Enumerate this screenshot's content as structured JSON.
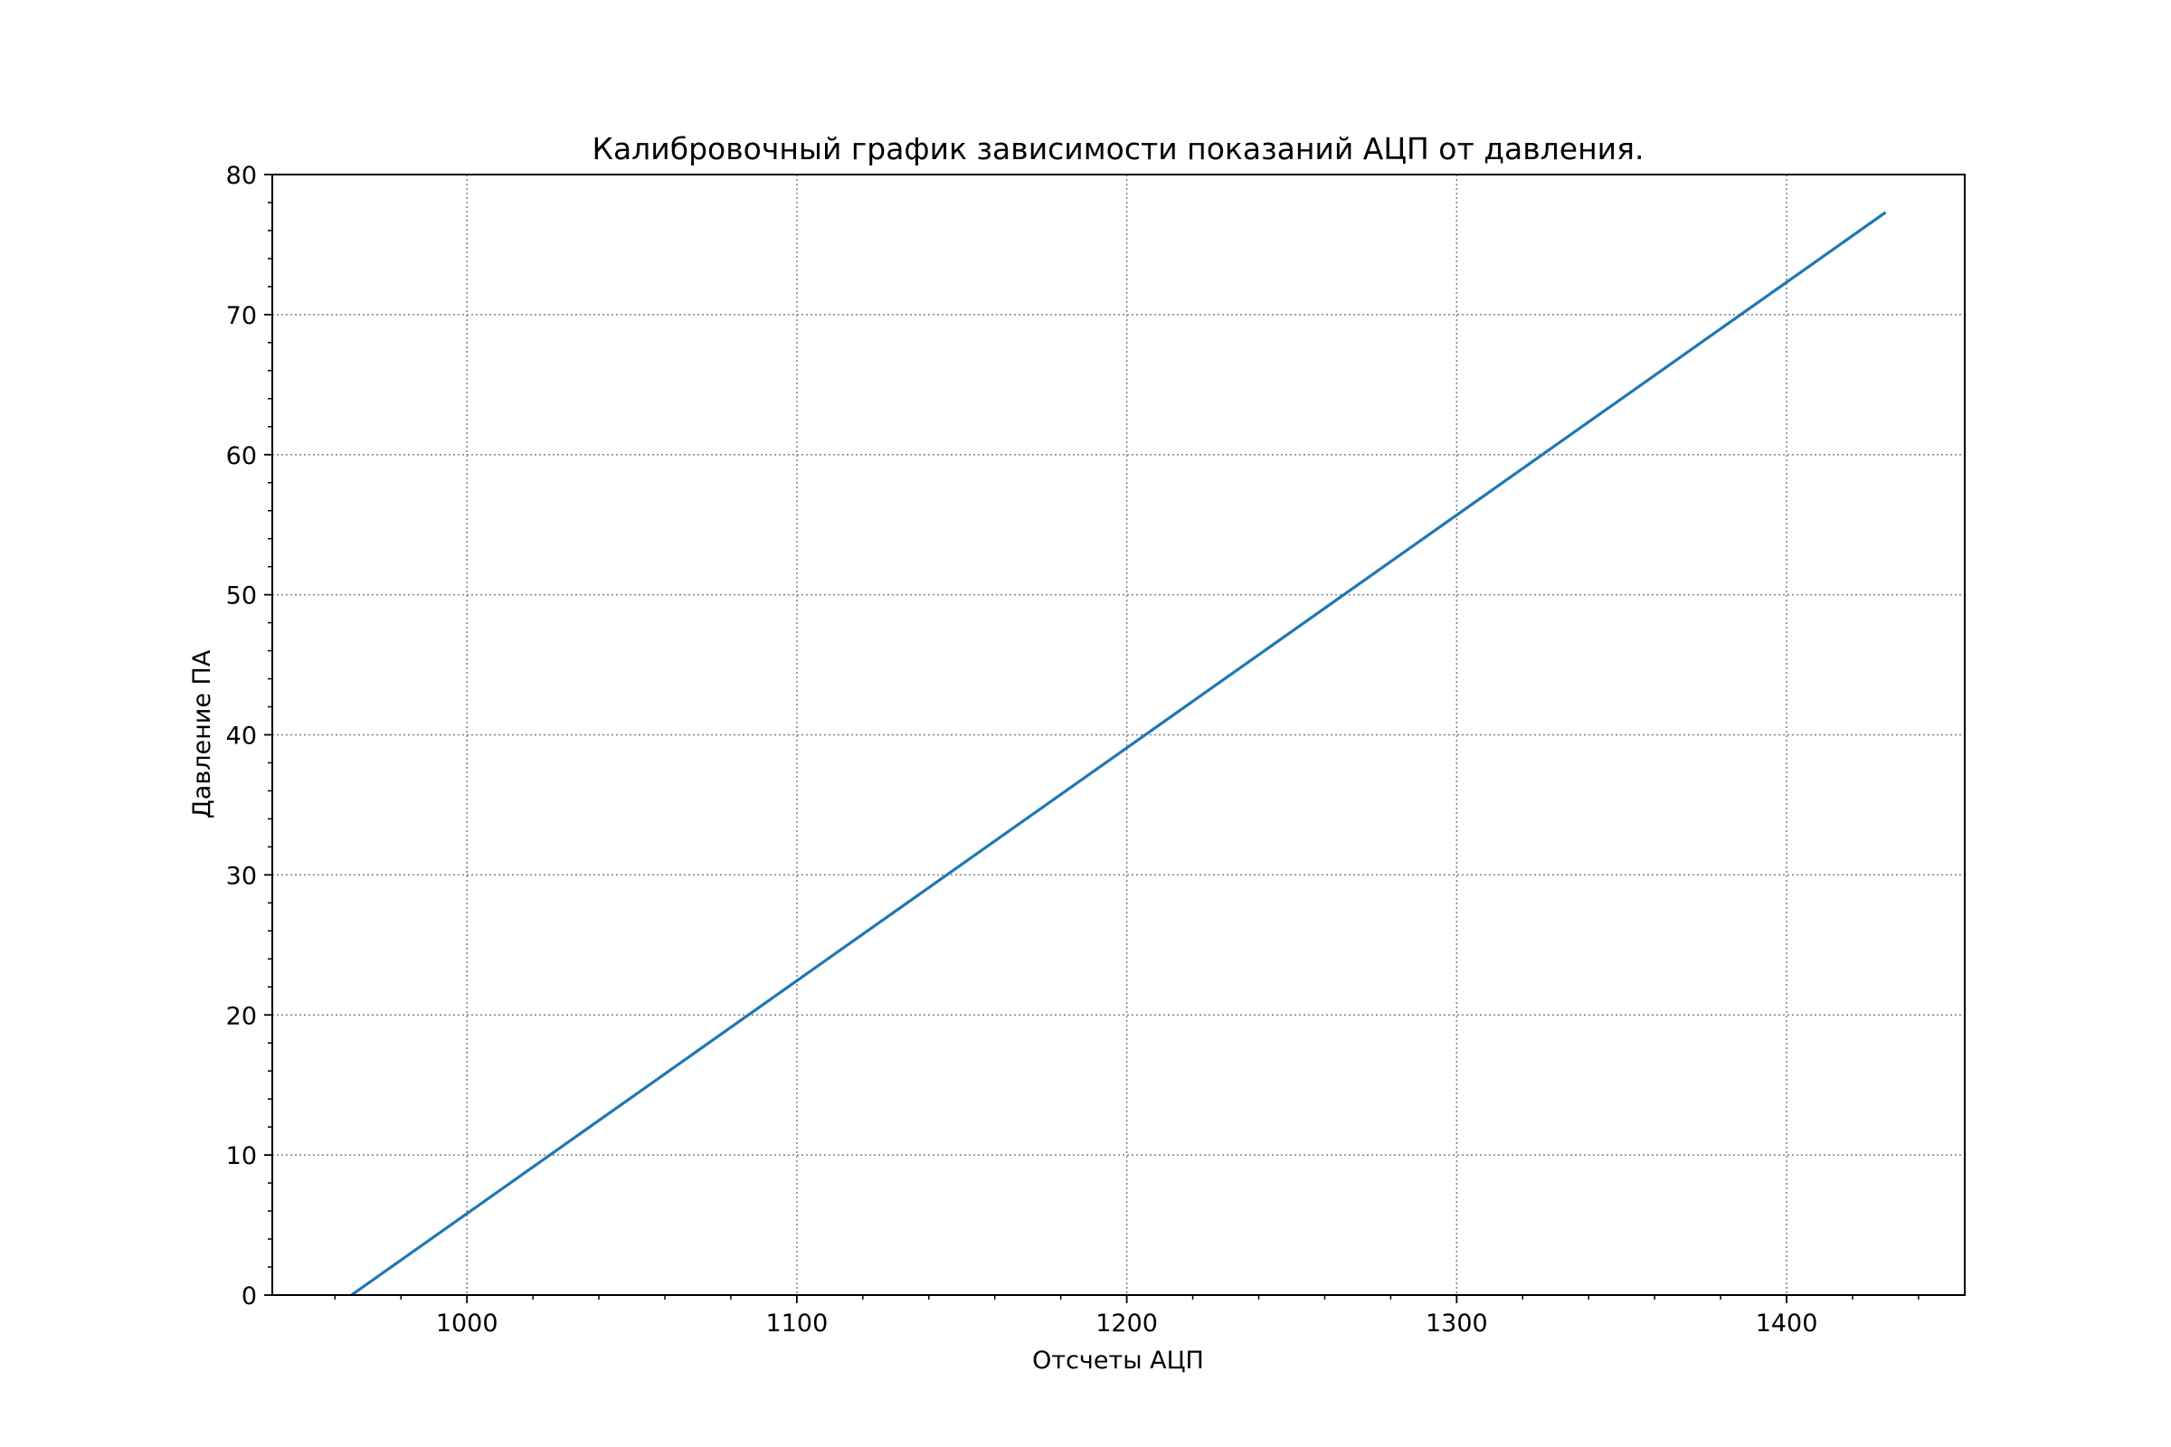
{
  "chart_data": {
    "type": "line",
    "title": "Калибровочный график зависимости показаний АЦП от давления.",
    "xlabel": "Отсчеты АЦП",
    "ylabel": "Давление ПА",
    "xlim": [
      941,
      1454
    ],
    "ylim": [
      0,
      80
    ],
    "x_ticks": [
      1000,
      1100,
      1200,
      1300,
      1400
    ],
    "y_ticks": [
      0,
      10,
      20,
      30,
      40,
      50,
      60,
      70,
      80
    ],
    "grid": true,
    "series": [
      {
        "color": "#1f77b4",
        "x": [
          965,
          1430
        ],
        "y": [
          0,
          77.3
        ]
      }
    ]
  }
}
